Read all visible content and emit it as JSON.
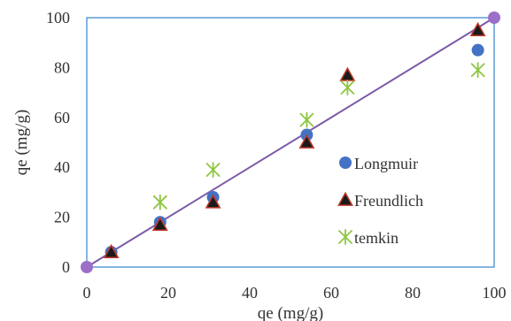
{
  "chart_data": {
    "type": "scatter",
    "xlabel": "qe (mg/g)",
    "ylabel": "qe (mg/g)",
    "xlim": [
      0,
      100
    ],
    "ylim": [
      0,
      100
    ],
    "x_ticks": [
      "0",
      "20",
      "40",
      "60",
      "80",
      "100"
    ],
    "y_ticks": [
      "0",
      "20",
      "40",
      "60",
      "80",
      "100"
    ],
    "grid": false,
    "legend_position": "right-middle",
    "series": [
      {
        "name": "Longmuir",
        "marker": "circle",
        "color": "#4472C4",
        "points": [
          [
            6,
            6
          ],
          [
            18,
            18
          ],
          [
            31,
            28
          ],
          [
            54,
            53
          ],
          [
            96,
            87
          ]
        ]
      },
      {
        "name": "Freundlich",
        "marker": "triangle",
        "color": "#1a1a1a",
        "edge_color": "#C0392B",
        "points": [
          [
            6,
            6
          ],
          [
            18,
            17
          ],
          [
            31,
            26
          ],
          [
            54,
            50
          ],
          [
            64,
            77
          ],
          [
            96,
            95
          ]
        ]
      },
      {
        "name": "temkin",
        "marker": "star",
        "color": "#8DC63F",
        "points": [
          [
            18,
            26
          ],
          [
            31,
            39
          ],
          [
            54,
            59
          ],
          [
            64,
            72
          ],
          [
            96,
            79
          ]
        ]
      }
    ],
    "reference_line": {
      "color": "#7B5BA6",
      "endpoint_color": "#9B6FC8",
      "from": [
        0,
        0
      ],
      "to": [
        100,
        100
      ]
    }
  }
}
